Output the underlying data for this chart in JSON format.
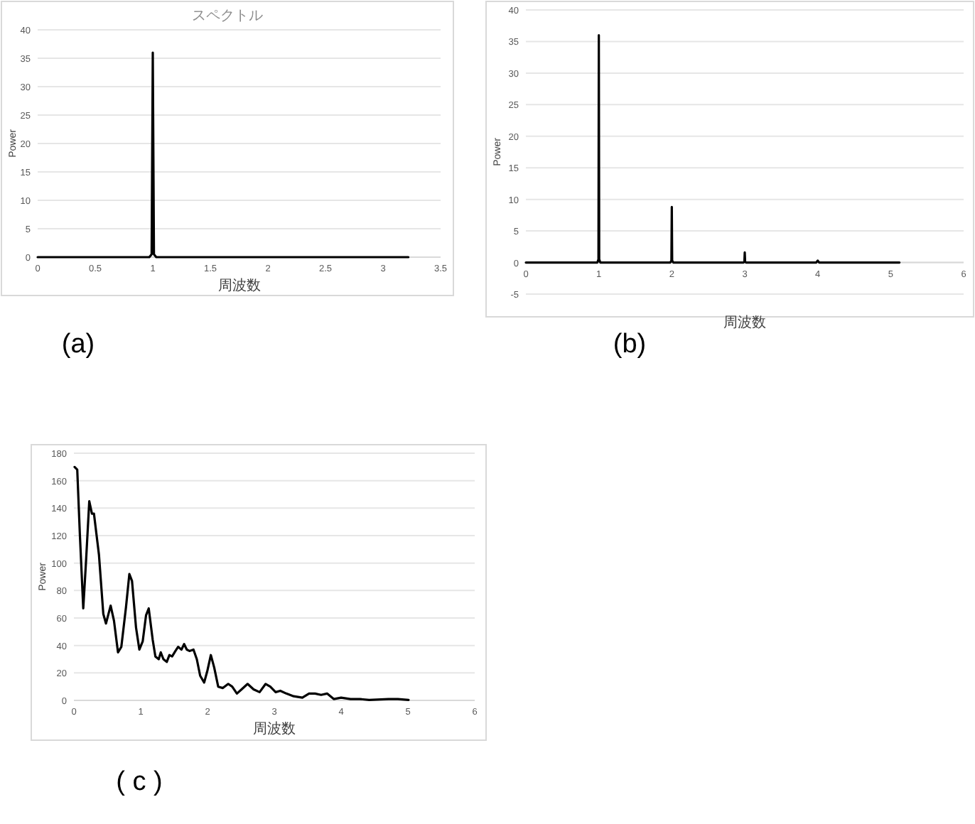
{
  "chart_data": [
    {
      "type": "line",
      "title": "スペクトル",
      "xlabel": "周波数",
      "ylabel": "Power",
      "xlim": [
        0,
        3.5
      ],
      "xticks": [
        0,
        0.5,
        1,
        1.5,
        2,
        2.5,
        3,
        3.5
      ],
      "ylim": [
        0,
        40
      ],
      "yticks": [
        0,
        5,
        10,
        15,
        20,
        25,
        30,
        35,
        40
      ],
      "grid": "y",
      "annotations": [
        "(a)"
      ],
      "series": [
        {
          "color": "#000000",
          "x": [
            0,
            0.97,
            0.99,
            1.0,
            1.01,
            1.03,
            3.22
          ],
          "values": [
            0,
            0,
            0.5,
            36,
            0.5,
            0,
            0
          ]
        }
      ]
    },
    {
      "type": "line",
      "xlabel": "周波数",
      "ylabel": "Power",
      "xlim": [
        0,
        6
      ],
      "xticks": [
        0,
        1,
        2,
        3,
        4,
        5,
        6
      ],
      "ylim": [
        -5,
        40
      ],
      "yticks": [
        -5,
        0,
        5,
        10,
        15,
        20,
        25,
        30,
        35,
        40
      ],
      "grid": "y",
      "annotations": [
        "(b)"
      ],
      "series": [
        {
          "color": "#000000",
          "x": [
            0,
            0.98,
            0.995,
            1.0,
            1.005,
            1.02,
            1.98,
            1.995,
            2.0,
            2.005,
            2.02,
            2.98,
            2.995,
            3.0,
            3.005,
            3.02,
            3.98,
            4.0,
            4.02,
            5.12
          ],
          "values": [
            0,
            0,
            0.5,
            36,
            0.5,
            0,
            0,
            0.3,
            8.8,
            0.3,
            0,
            0,
            0.1,
            1.6,
            0.1,
            0,
            0,
            0.3,
            0,
            0
          ]
        }
      ]
    },
    {
      "type": "line",
      "xlabel": "周波数",
      "ylabel": "Power",
      "xlim": [
        0,
        6
      ],
      "xticks": [
        0,
        1,
        2,
        3,
        4,
        5,
        6
      ],
      "ylim": [
        0,
        180
      ],
      "yticks": [
        0,
        20,
        40,
        60,
        80,
        100,
        120,
        140,
        160,
        180
      ],
      "grid": "y",
      "annotations": [
        "( c )"
      ],
      "series": [
        {
          "color": "#000000",
          "x": [
            0.01,
            0.05,
            0.09,
            0.14,
            0.18,
            0.23,
            0.27,
            0.3,
            0.375,
            0.44,
            0.48,
            0.55,
            0.6,
            0.66,
            0.71,
            0.78,
            0.83,
            0.87,
            0.93,
            0.98,
            1.03,
            1.08,
            1.12,
            1.18,
            1.22,
            1.27,
            1.3,
            1.34,
            1.39,
            1.43,
            1.47,
            1.52,
            1.56,
            1.61,
            1.65,
            1.69,
            1.73,
            1.79,
            1.84,
            1.89,
            1.95,
            2.0,
            2.05,
            2.1,
            2.16,
            2.23,
            2.31,
            2.37,
            2.44,
            2.51,
            2.6,
            2.69,
            2.78,
            2.87,
            2.94,
            3.02,
            3.09,
            3.18,
            3.29,
            3.42,
            3.52,
            3.61,
            3.7,
            3.79,
            3.89,
            4.0,
            4.14,
            4.28,
            4.42,
            4.71,
            4.85,
            5.01
          ],
          "values": [
            170,
            168,
            120,
            67,
            100,
            145,
            136,
            136,
            106,
            63,
            56,
            69,
            58,
            35,
            39,
            68,
            92,
            87,
            53,
            37,
            43,
            62,
            67,
            44,
            32,
            30,
            35,
            30,
            28,
            33,
            32,
            36,
            39,
            37,
            41,
            37,
            36,
            37,
            30,
            18,
            13,
            22,
            33,
            24,
            10,
            9,
            12,
            10,
            5,
            8,
            12,
            8,
            6,
            12,
            10,
            6,
            7,
            5,
            3,
            2,
            5,
            5,
            4,
            5,
            1,
            2,
            1,
            1,
            0.3,
            1,
            1,
            0.3
          ]
        }
      ]
    }
  ]
}
